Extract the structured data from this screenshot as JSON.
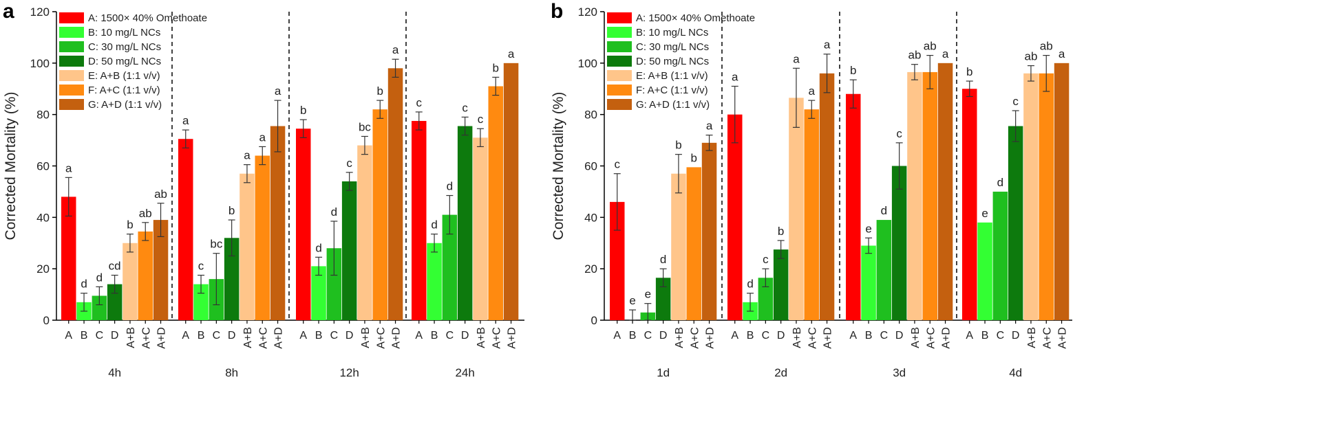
{
  "colors": {
    "A": "#ff0000",
    "B": "#33ff33",
    "C": "#1fbf1f",
    "D": "#0d7a0d",
    "E": "#ffc58a",
    "F": "#ff8a10",
    "G": "#c4600f"
  },
  "chart_data": [
    {
      "type": "bar",
      "panel": "a",
      "ylabel": "Corrected Mortality (%)",
      "ylim": [
        0,
        120
      ],
      "yticks": [
        0,
        20,
        40,
        60,
        80,
        100,
        120
      ],
      "groups": [
        "4h",
        "8h",
        "12h",
        "24h"
      ],
      "categories": [
        "A",
        "B",
        "C",
        "D",
        "A+B",
        "A+C",
        "A+D"
      ],
      "legend": [
        {
          "key": "A",
          "label": "A: 1500× 40% Omethoate"
        },
        {
          "key": "B",
          "label": "B: 10 mg/L NCs"
        },
        {
          "key": "C",
          "label": "C: 30 mg/L NCs"
        },
        {
          "key": "D",
          "label": "D: 50 mg/L NCs"
        },
        {
          "key": "E",
          "label": "E:  A+B (1:1 v/v)"
        },
        {
          "key": "F",
          "label": "F:  A+C (1:1 v/v)"
        },
        {
          "key": "G",
          "label": "G:  A+D (1:1 v/v)"
        }
      ],
      "values": [
        [
          48,
          7,
          9.5,
          14,
          30,
          34.5,
          39
        ],
        [
          70.5,
          14,
          16,
          32,
          57,
          64,
          75.5
        ],
        [
          74.5,
          21,
          28,
          54,
          68,
          82,
          98
        ],
        [
          77.5,
          30,
          41,
          75.5,
          71,
          91,
          100
        ]
      ],
      "errors": [
        [
          7.5,
          3.5,
          3.5,
          3.5,
          3.5,
          3.5,
          6.5
        ],
        [
          3.5,
          3.5,
          10,
          7,
          3.5,
          3.5,
          10
        ],
        [
          3.5,
          3.5,
          10.5,
          3.5,
          3.5,
          3.5,
          3.5
        ],
        [
          3.5,
          3.5,
          7.5,
          3.5,
          3.5,
          3.5,
          0
        ]
      ],
      "letters": [
        [
          "a",
          "d",
          "d",
          "cd",
          "b",
          "ab",
          "ab"
        ],
        [
          "a",
          "c",
          "bc",
          "b",
          "a",
          "a",
          "a"
        ],
        [
          "b",
          "d",
          "d",
          "c",
          "bc",
          "b",
          "a"
        ],
        [
          "c",
          "d",
          "d",
          "c",
          "c",
          "b",
          "a"
        ]
      ]
    },
    {
      "type": "bar",
      "panel": "b",
      "ylabel": "Corrected Mortality (%)",
      "ylim": [
        0,
        120
      ],
      "yticks": [
        0,
        20,
        40,
        60,
        80,
        100,
        120
      ],
      "groups": [
        "1d",
        "2d",
        "3d",
        "4d"
      ],
      "categories": [
        "A",
        "B",
        "C",
        "D",
        "A+B",
        "A+C",
        "A+D"
      ],
      "legend": [
        {
          "key": "A",
          "label": "A: 1500× 40% Omethoate"
        },
        {
          "key": "B",
          "label": "B: 10 mg/L NCs"
        },
        {
          "key": "C",
          "label": "C: 30 mg/L NCs"
        },
        {
          "key": "D",
          "label": "D: 50 mg/L NCs"
        },
        {
          "key": "E",
          "label": "E: A+B (1:1 v/v)"
        },
        {
          "key": "F",
          "label": "F: A+C (1:1 v/v)"
        },
        {
          "key": "G",
          "label": "G: A+D (1:1 v/v)"
        }
      ],
      "values": [
        [
          46,
          0,
          3,
          16.5,
          57,
          59.5,
          69
        ],
        [
          80,
          7,
          16.5,
          27.5,
          86.5,
          82,
          96
        ],
        [
          88,
          29,
          39,
          60,
          96.5,
          96.5,
          100
        ],
        [
          90,
          38,
          50,
          75.5,
          96,
          96,
          100
        ]
      ],
      "errors": [
        [
          11,
          4,
          3.5,
          3.5,
          7.5,
          0,
          3
        ],
        [
          11,
          3.5,
          3.5,
          3.5,
          11.5,
          3.5,
          7.5
        ],
        [
          5.5,
          3,
          0,
          9,
          3,
          6.5,
          0
        ],
        [
          3,
          0,
          0,
          6,
          3,
          7,
          0
        ]
      ],
      "letters": [
        [
          "c",
          "e",
          "e",
          "d",
          "b",
          "b",
          "a"
        ],
        [
          "a",
          "d",
          "c",
          "b",
          "a",
          "a",
          "a"
        ],
        [
          "b",
          "e",
          "d",
          "c",
          "ab",
          "ab",
          "a"
        ],
        [
          "b",
          "e",
          "d",
          "c",
          "ab",
          "ab",
          "a"
        ]
      ]
    }
  ]
}
